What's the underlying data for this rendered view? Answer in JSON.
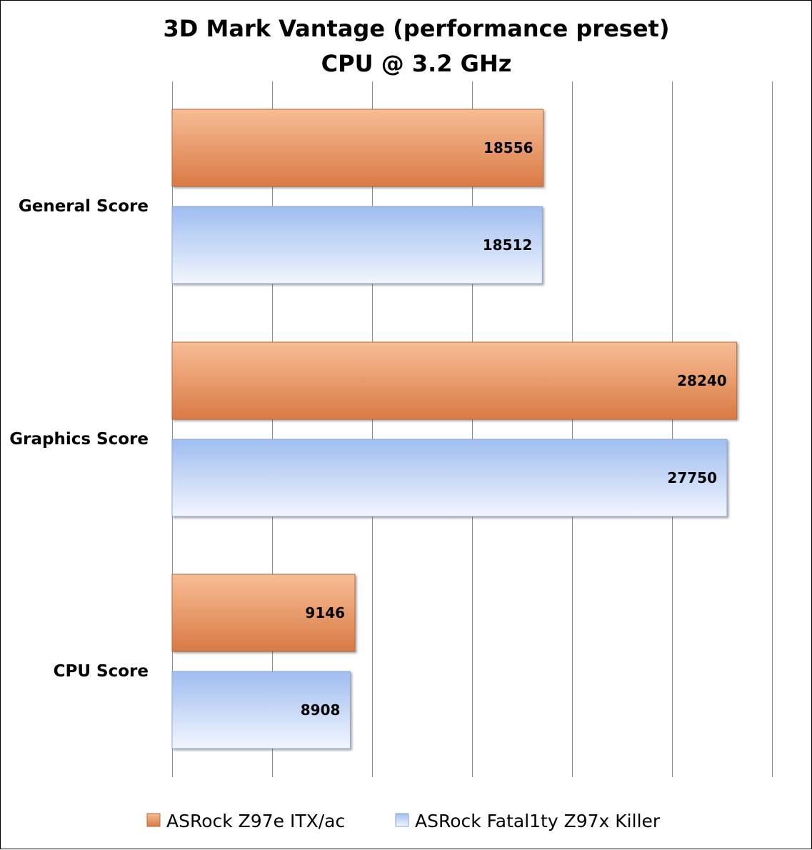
{
  "chart_data": {
    "type": "bar",
    "orientation": "horizontal",
    "title": "3D Mark Vantage (performance preset)",
    "subtitle": "CPU @ 3.2 GHz",
    "categories": [
      "General Score",
      "Graphics Score",
      "CPU Score"
    ],
    "series": [
      {
        "name": "ASRock Z97e ITX/ac",
        "values": [
          18556,
          28240,
          9146
        ],
        "color": "#f0a070"
      },
      {
        "name": "ASRock Fatal1ty Z97x Killer",
        "values": [
          18512,
          27750,
          8908
        ],
        "color": "#b7cdf4"
      }
    ],
    "xlim": [
      0,
      30000
    ],
    "grid": true,
    "axis_tick_labels_shown": false,
    "legend": "bottom"
  }
}
